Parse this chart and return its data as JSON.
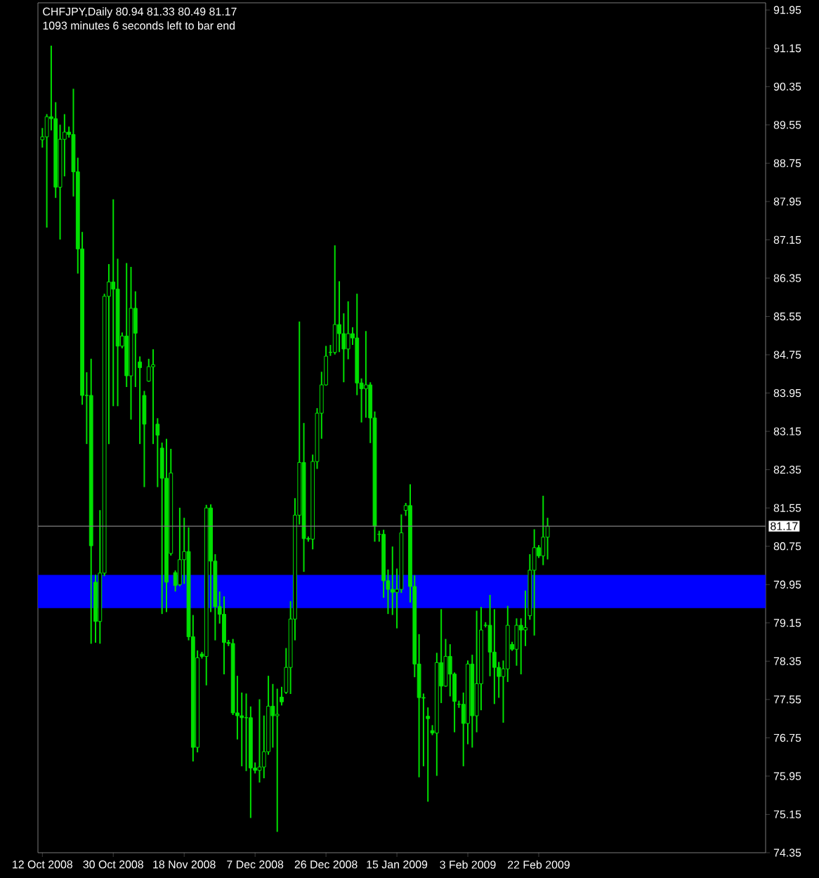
{
  "chart_data": {
    "type": "candlestick",
    "title": "CHFJPY,Daily  80.94 81.33 80.49 81.17",
    "subtitle": "1093 minutes 6 seconds left to bar end",
    "color": "#00e000",
    "categories": [
      "12 Oct 2008",
      null,
      null,
      null,
      null,
      null,
      null,
      null,
      null,
      null,
      null,
      null,
      null,
      null,
      null,
      null,
      "30 Oct 2008",
      null,
      null,
      null,
      null,
      null,
      null,
      null,
      null,
      null,
      null,
      null,
      null,
      null,
      null,
      null,
      "18 Nov 2008",
      null,
      null,
      null,
      null,
      null,
      null,
      null,
      null,
      null,
      null,
      null,
      null,
      null,
      null,
      null,
      "7 Dec 2008",
      null,
      null,
      null,
      null,
      null,
      null,
      null,
      null,
      null,
      null,
      null,
      null,
      null,
      null,
      null,
      "26 Dec 2008",
      null,
      null,
      null,
      null,
      null,
      null,
      null,
      null,
      null,
      null,
      null,
      null,
      null,
      null,
      null,
      "15 Jan 2009",
      null,
      null,
      null,
      null,
      null,
      null,
      null,
      null,
      null,
      null,
      null,
      null,
      null,
      null,
      null,
      "3 Feb 2009",
      null,
      null,
      null,
      null,
      null,
      null,
      null,
      null,
      null,
      null,
      null,
      null,
      null,
      null,
      null,
      "22 Feb 2009",
      null,
      null,
      null,
      null,
      null,
      null,
      null,
      null,
      null,
      null,
      null,
      null,
      null,
      null,
      null,
      null,
      null,
      null,
      null,
      null,
      null,
      null,
      null,
      null,
      null,
      null,
      null,
      null,
      null,
      null,
      null,
      null,
      null,
      null,
      null,
      null,
      null,
      null,
      null,
      null,
      null,
      null,
      null,
      null,
      null,
      null,
      null,
      null,
      null,
      null,
      null
    ],
    "ohlc": [
      [
        89.24,
        89.47,
        89.09,
        89.3
      ],
      [
        89.3,
        89.76,
        87.42,
        89.72
      ],
      [
        89.72,
        91.19,
        89.45,
        89.68
      ],
      [
        89.68,
        90.01,
        88.04,
        88.25
      ],
      [
        88.25,
        89.54,
        87.17,
        89.25
      ],
      [
        89.25,
        89.76,
        88.49,
        89.4
      ],
      [
        89.4,
        89.5,
        89.3,
        89.35
      ],
      [
        89.35,
        90.29,
        88.07,
        88.57
      ],
      [
        88.57,
        88.85,
        86.46,
        86.96
      ],
      [
        86.96,
        87.3,
        83.72,
        83.9
      ],
      [
        83.9,
        84.37,
        82.9,
        83.9
      ],
      [
        83.9,
        84.65,
        78.73,
        80.76
      ],
      [
        80.0,
        80.14,
        78.75,
        79.18
      ],
      [
        79.18,
        81.49,
        78.73,
        80.19
      ],
      [
        80.19,
        86.01,
        80.14,
        85.97
      ],
      [
        85.97,
        86.63,
        82.9,
        86.27
      ],
      [
        86.27,
        87.98,
        83.69,
        86.12
      ],
      [
        86.12,
        86.74,
        83.69,
        84.93
      ],
      [
        84.93,
        85.2,
        84.9,
        85.14
      ],
      [
        85.14,
        86.65,
        84.09,
        84.31
      ],
      [
        84.31,
        86.57,
        83.41,
        85.72
      ],
      [
        85.72,
        86.06,
        84.09,
        85.2
      ],
      [
        84.6,
        84.7,
        82.9,
        84.48
      ],
      [
        83.9,
        83.98,
        82.0,
        83.3
      ],
      [
        84.2,
        84.65,
        84.2,
        84.5
      ],
      [
        84.5,
        84.85,
        82.9,
        84.54
      ],
      [
        83.3,
        83.41,
        82.0,
        83.07
      ],
      [
        82.8,
        82.9,
        79.35,
        82.17
      ],
      [
        82.17,
        82.98,
        79.39,
        80.0
      ],
      [
        80.6,
        82.77,
        80.57,
        82.28
      ],
      [
        80.2,
        80.23,
        79.82,
        79.93
      ],
      [
        79.95,
        81.54,
        79.93,
        80.47
      ],
      [
        80.47,
        81.33,
        79.98,
        80.64
      ],
      [
        80.64,
        81.13,
        78.8,
        78.86
      ],
      [
        78.86,
        79.3,
        76.27,
        76.55
      ],
      [
        76.55,
        78.56,
        76.46,
        78.42
      ],
      [
        78.5,
        78.53,
        78.42,
        78.45
      ],
      [
        78.45,
        81.6,
        77.86,
        81.55
      ],
      [
        81.55,
        81.61,
        79.39,
        80.44
      ],
      [
        80.44,
        80.57,
        78.8,
        79.49
      ],
      [
        79.49,
        79.79,
        79.15,
        79.33
      ],
      [
        79.33,
        79.69,
        78.09,
        78.74
      ],
      [
        78.74,
        78.78,
        78.68,
        78.72
      ],
      [
        78.72,
        78.8,
        77.24,
        77.27
      ],
      [
        77.27,
        78.03,
        76.73,
        77.21
      ],
      [
        77.21,
        77.68,
        76.17,
        77.17
      ],
      [
        77.17,
        77.66,
        76.07,
        77.17
      ],
      [
        77.17,
        77.39,
        75.09,
        76.12
      ],
      [
        76.12,
        76.22,
        76.02,
        76.07
      ],
      [
        76.07,
        77.54,
        75.83,
        76.14
      ],
      [
        76.14,
        77.2,
        75.92,
        76.46
      ],
      [
        76.46,
        78.03,
        76.41,
        77.41
      ],
      [
        77.41,
        77.86,
        76.56,
        77.21
      ],
      [
        77.21,
        77.76,
        74.8,
        77.24
      ],
      [
        77.6,
        77.8,
        77.44,
        77.5
      ],
      [
        77.7,
        78.61,
        77.68,
        78.22
      ],
      [
        78.22,
        79.59,
        77.68,
        79.23
      ],
      [
        79.23,
        81.74,
        78.8,
        81.4
      ],
      [
        81.4,
        85.43,
        81.22,
        82.5
      ],
      [
        82.5,
        83.31,
        80.23,
        80.91
      ],
      [
        80.91,
        80.94,
        80.86,
        80.9
      ],
      [
        80.9,
        82.65,
        80.7,
        82.52
      ],
      [
        82.52,
        83.62,
        82.38,
        83.53
      ],
      [
        83.53,
        84.38,
        83.01,
        84.12
      ],
      [
        84.12,
        84.92,
        84.12,
        84.72
      ],
      [
        84.8,
        84.94,
        84.74,
        84.8
      ],
      [
        84.8,
        87.02,
        84.77,
        85.38
      ],
      [
        85.38,
        86.27,
        84.82,
        85.19
      ],
      [
        85.19,
        85.6,
        84.19,
        84.87
      ],
      [
        84.87,
        85.85,
        84.67,
        85.19
      ],
      [
        85.19,
        85.31,
        84.97,
        85.1
      ],
      [
        85.1,
        86.01,
        83.92,
        84.16
      ],
      [
        84.16,
        84.24,
        83.35,
        84.04
      ],
      [
        84.04,
        85.23,
        83.45,
        84.12
      ],
      [
        84.12,
        84.16,
        82.92,
        83.43
      ],
      [
        83.43,
        83.55,
        80.86,
        81.17
      ],
      [
        81.0,
        81.06,
        80.86,
        81.0
      ],
      [
        81.0,
        81.08,
        79.69,
        80.03
      ],
      [
        80.03,
        80.25,
        79.35,
        79.85
      ],
      [
        79.85,
        80.73,
        79.33,
        79.79
      ],
      [
        79.79,
        80.27,
        79.05,
        79.85
      ],
      [
        79.85,
        81.4,
        79.79,
        81.03
      ],
      [
        81.5,
        81.64,
        81.4,
        81.6
      ],
      [
        81.6,
        82.03,
        79.59,
        79.91
      ],
      [
        79.91,
        80.13,
        78.03,
        78.29
      ],
      [
        78.29,
        78.9,
        75.94,
        77.59
      ],
      [
        77.59,
        77.66,
        76.17,
        77.58
      ],
      [
        77.2,
        77.37,
        75.43,
        77.15
      ],
      [
        76.9,
        77.0,
        76.82,
        76.85
      ],
      [
        76.85,
        78.51,
        75.97,
        78.32
      ],
      [
        78.32,
        79.42,
        77.49,
        77.83
      ],
      [
        77.83,
        78.8,
        77.83,
        78.45
      ],
      [
        78.45,
        78.69,
        77.63,
        78.08
      ],
      [
        78.08,
        78.1,
        76.88,
        77.51
      ],
      [
        77.45,
        77.51,
        77.39,
        77.45
      ],
      [
        77.45,
        77.68,
        76.17,
        77.05
      ],
      [
        77.05,
        78.35,
        76.63,
        78.29
      ],
      [
        78.29,
        78.47,
        76.56,
        77.21
      ],
      [
        77.21,
        79.39,
        76.88,
        77.88
      ],
      [
        77.88,
        79.47,
        77.34,
        79.0
      ],
      [
        79.1,
        79.15,
        79.07,
        79.1
      ],
      [
        79.1,
        79.72,
        78.05,
        78.54
      ],
      [
        78.54,
        79.42,
        77.47,
        78.22
      ],
      [
        78.22,
        78.32,
        77.6,
        78.03
      ],
      [
        78.03,
        78.35,
        77.08,
        78.19
      ],
      [
        78.19,
        79.49,
        77.93,
        79.1
      ],
      [
        78.7,
        78.74,
        78.58,
        78.6
      ],
      [
        78.6,
        79.23,
        78.27,
        79.1
      ],
      [
        79.1,
        79.23,
        78.09,
        79.0
      ],
      [
        79.0,
        79.81,
        78.68,
        79.05
      ],
      [
        79.3,
        80.57,
        79.23,
        80.25
      ],
      [
        80.25,
        81.09,
        78.9,
        80.72
      ],
      [
        80.72,
        80.76,
        80.52,
        80.55
      ],
      [
        80.55,
        81.79,
        80.37,
        80.94
      ],
      [
        80.94,
        81.33,
        80.49,
        81.17
      ],
      null,
      null,
      null,
      null,
      null,
      null,
      null,
      null,
      null,
      null,
      null,
      null,
      null,
      null,
      null,
      null,
      null,
      null,
      null,
      null,
      null,
      null,
      null,
      null,
      null,
      null,
      null,
      null,
      null,
      null,
      null,
      null,
      null,
      null,
      null,
      null,
      null,
      null,
      null,
      null,
      null,
      null,
      null,
      null,
      null,
      null,
      null,
      null,
      null
    ],
    "ylim": [
      74.35,
      92.1
    ],
    "yticks": [
      91.95,
      91.15,
      90.35,
      89.55,
      88.75,
      87.95,
      87.15,
      86.35,
      85.55,
      84.75,
      83.95,
      83.15,
      82.35,
      81.55,
      80.75,
      79.95,
      79.15,
      78.35,
      77.55,
      76.75,
      75.95,
      75.15,
      74.35
    ],
    "ref_lines": [
      {
        "axis": "y",
        "value": 81.17,
        "label": "81.17",
        "color": "#808080"
      }
    ],
    "bands": [
      {
        "axis": "y",
        "from": 79.46,
        "to": 80.15,
        "color": "#0000ff"
      }
    ]
  }
}
